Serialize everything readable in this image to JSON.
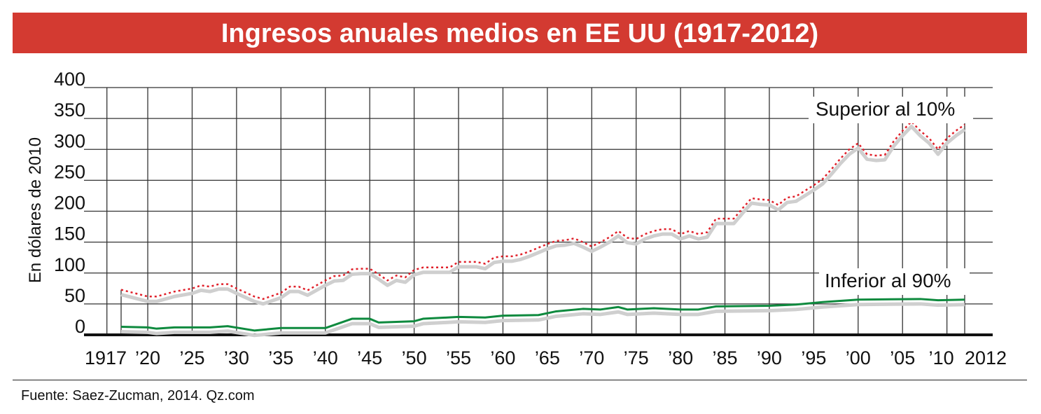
{
  "chart_data": {
    "type": "line",
    "title": "Ingresos anuales medios en EE UU (1917-2012)",
    "ylabel": "En dólares de 2010",
    "xlabel": "",
    "ylim": [
      0,
      400
    ],
    "xlim": [
      1917,
      2012
    ],
    "grid": true,
    "yticks": [
      0,
      50,
      100,
      150,
      200,
      250,
      300,
      350,
      400
    ],
    "ytick_labels": [
      "0",
      "50",
      "100",
      "150",
      "200",
      "250",
      "300",
      "350",
      "400"
    ],
    "xticks": [
      1917,
      1920,
      1925,
      1930,
      1935,
      1940,
      1945,
      1950,
      1955,
      1960,
      1965,
      1970,
      1975,
      1980,
      1985,
      1990,
      1995,
      2000,
      2005,
      2010,
      2012
    ],
    "xtick_labels": [
      "1917",
      "’20",
      "’25",
      "’30",
      "’35",
      "’40",
      "’45",
      "’50",
      "’55",
      "’60",
      "’65",
      "’70",
      "’75",
      "’80",
      "’85",
      "’90",
      "’95",
      "’00",
      "’05",
      "’10",
      "2012"
    ],
    "series": [
      {
        "name": "Superior al 10%",
        "color": "#e0202a",
        "style": "dotted",
        "x": [
          1917,
          1920,
          1921,
          1923,
          1925,
          1926,
          1927,
          1928,
          1929,
          1930,
          1932,
          1933,
          1935,
          1936,
          1937,
          1938,
          1940,
          1941,
          1942,
          1943,
          1944,
          1945,
          1946,
          1947,
          1948,
          1949,
          1950,
          1951,
          1952,
          1953,
          1954,
          1955,
          1956,
          1957,
          1958,
          1959,
          1960,
          1961,
          1962,
          1963,
          1964,
          1965,
          1966,
          1967,
          1968,
          1969,
          1970,
          1971,
          1972,
          1973,
          1974,
          1975,
          1976,
          1977,
          1978,
          1979,
          1980,
          1981,
          1982,
          1983,
          1984,
          1985,
          1986,
          1987,
          1988,
          1989,
          1990,
          1991,
          1992,
          1993,
          1994,
          1995,
          1996,
          1997,
          1998,
          1999,
          2000,
          2001,
          2002,
          2003,
          2004,
          2005,
          2006,
          2007,
          2008,
          2009,
          2010,
          2011,
          2012
        ],
        "values": [
          73,
          62,
          62,
          70,
          75,
          80,
          78,
          82,
          82,
          75,
          62,
          58,
          68,
          78,
          78,
          72,
          88,
          95,
          96,
          106,
          107,
          107,
          98,
          88,
          96,
          93,
          105,
          109,
          109,
          109,
          109,
          118,
          118,
          118,
          115,
          125,
          127,
          127,
          130,
          135,
          141,
          147,
          152,
          153,
          156,
          150,
          143,
          150,
          158,
          168,
          157,
          155,
          163,
          168,
          171,
          171,
          163,
          168,
          163,
          166,
          188,
          188,
          188,
          205,
          221,
          219,
          218,
          210,
          222,
          224,
          233,
          242,
          252,
          268,
          285,
          300,
          310,
          292,
          290,
          291,
          313,
          330,
          345,
          330,
          318,
          300,
          318,
          330,
          340
        ]
      },
      {
        "name": "Inferior al 90%",
        "color": "#0e8a3e",
        "style": "solid",
        "x": [
          1917,
          1920,
          1921,
          1923,
          1927,
          1929,
          1932,
          1935,
          1940,
          1943,
          1945,
          1946,
          1950,
          1951,
          1955,
          1958,
          1960,
          1964,
          1966,
          1969,
          1971,
          1973,
          1974,
          1977,
          1980,
          1982,
          1984,
          1990,
          1993,
          1996,
          2000,
          2007,
          2009,
          2012
        ],
        "values": [
          13,
          12,
          10,
          12,
          12,
          14,
          7,
          11,
          11,
          26,
          26,
          20,
          22,
          26,
          29,
          28,
          31,
          32,
          38,
          42,
          41,
          45,
          41,
          43,
          41,
          41,
          46,
          47,
          49,
          53,
          57,
          58,
          56,
          57
        ]
      }
    ],
    "legend": [
      "Superior al 10%",
      "Inferior al 90%"
    ],
    "annotations": [
      "Superior al 10%",
      "Inferior al 90%"
    ]
  },
  "source": "Fuente: Saez-Zucman, 2014. Qz.com"
}
